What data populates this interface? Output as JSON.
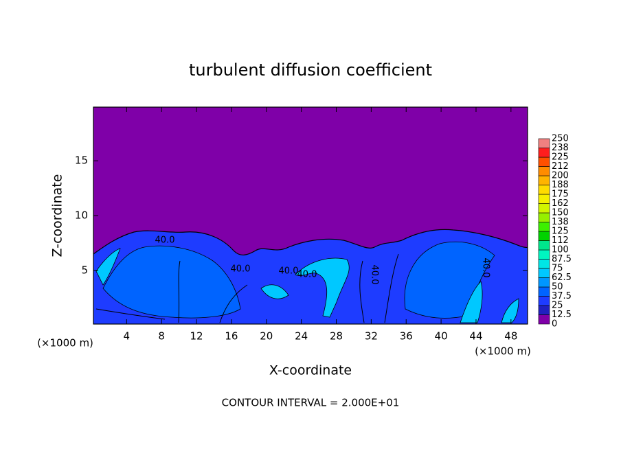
{
  "chart_data": {
    "type": "contour",
    "title": "turbulent diffusion coefficient",
    "x_label": "X-coordinate",
    "y_label": "Z-coordinate",
    "x_unit": "(×1000 m)",
    "y_unit": "(×1000 m)",
    "footer": "CONTOUR INTERVAL = 2.000E+01",
    "xlim": [
      0.2,
      49.9
    ],
    "ylim": [
      0.1,
      19.9
    ],
    "xticks": [
      4,
      8,
      12,
      16,
      20,
      24,
      28,
      32,
      36,
      40,
      44,
      48
    ],
    "yticks": [
      5,
      10,
      15
    ],
    "background_color": "#7f00a8",
    "colorbar_levels": [
      0,
      12.5,
      25,
      37.5,
      50,
      62.5,
      75,
      87.5,
      100,
      112,
      125,
      138,
      150,
      162,
      175,
      188,
      200,
      212,
      225,
      238,
      250
    ],
    "colorbar_colors": [
      "#7f00a8",
      "#2020c0",
      "#1e3cff",
      "#0064ff",
      "#0096ff",
      "#00c8ff",
      "#00e6e6",
      "#00f5c0",
      "#00e68c",
      "#00d200",
      "#3cf000",
      "#96f000",
      "#d2f500",
      "#f5f000",
      "#ffdc00",
      "#ffb400",
      "#ff8c00",
      "#ff5000",
      "#ff1e1e",
      "#f08080"
    ],
    "contour_labels": [
      "40.0",
      "40.0",
      "40.0",
      "40.0",
      "40.0",
      "40.0"
    ]
  }
}
